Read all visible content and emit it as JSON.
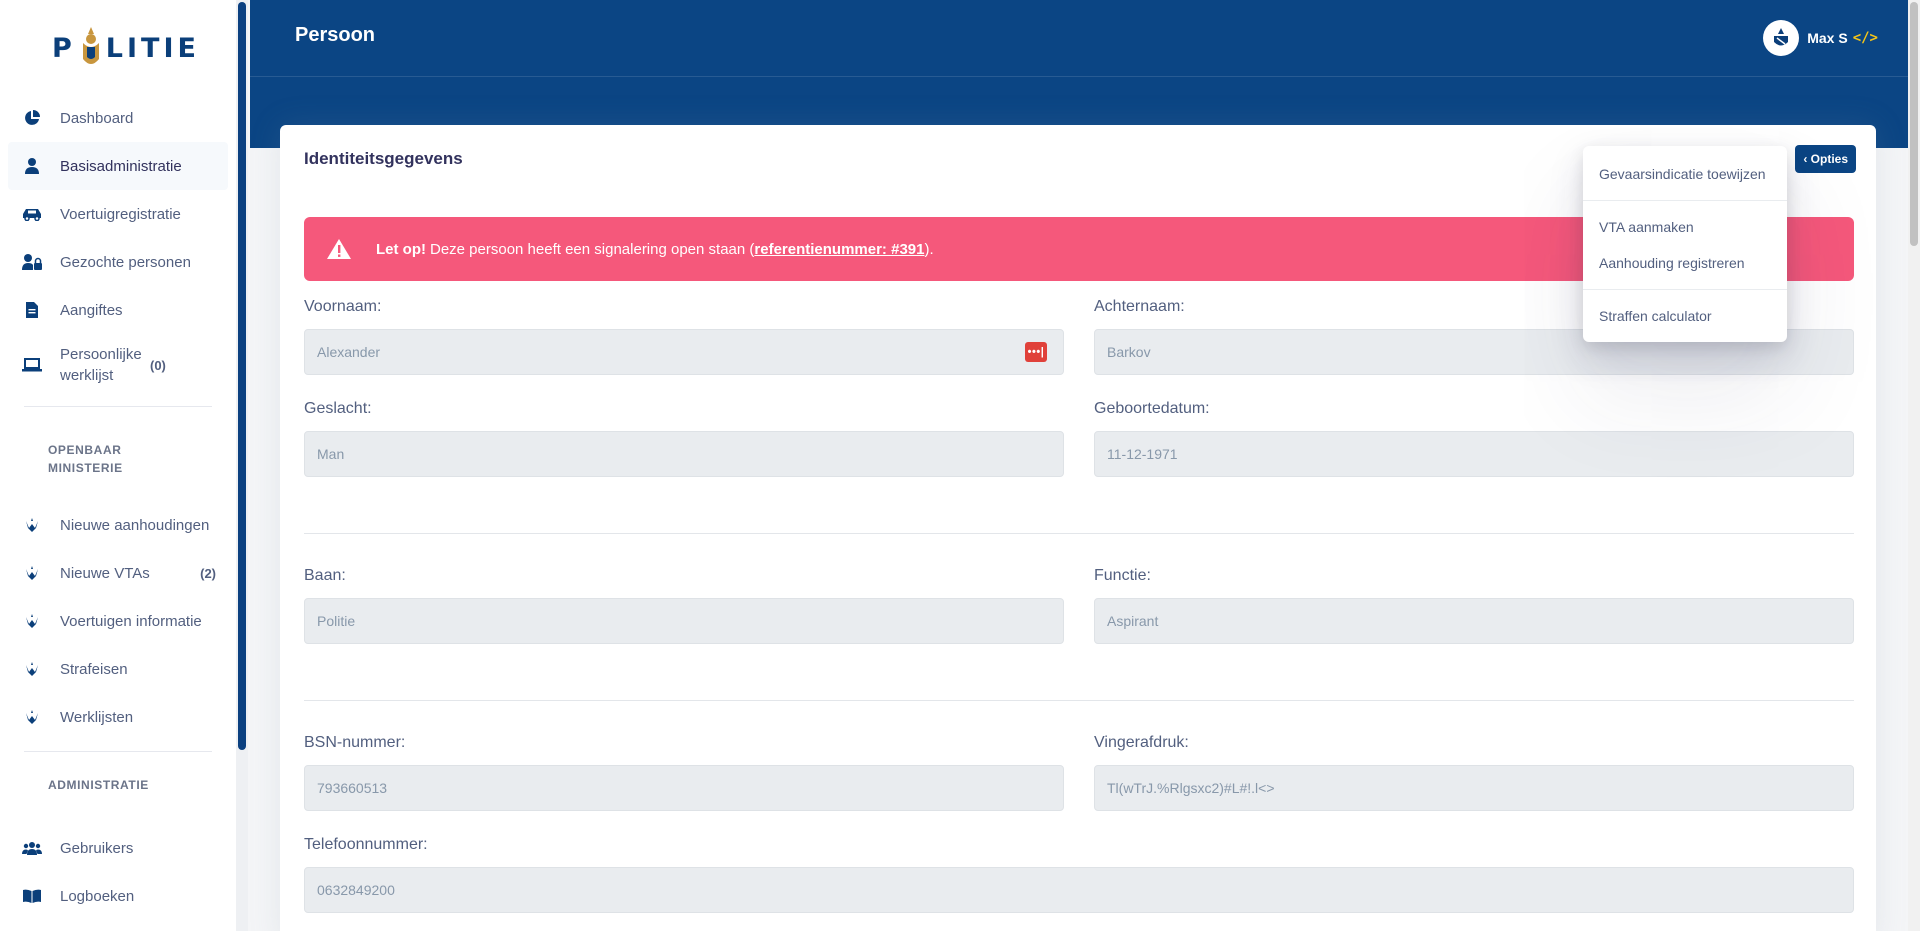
{
  "brand": {
    "logo_text_left": "P",
    "logo_text_right": "LITIE"
  },
  "sidebar": {
    "items": [
      {
        "label": "Dashboard",
        "icon": "pie-chart-icon"
      },
      {
        "label": "Basisadministratie",
        "icon": "user-icon",
        "active": true
      },
      {
        "label": "Voertuigregistratie",
        "icon": "car-icon"
      },
      {
        "label": "Gezochte personen",
        "icon": "user-lock-icon"
      },
      {
        "label": "Aangiftes",
        "icon": "file-icon"
      },
      {
        "label": "Persoonlijke werklijst",
        "icon": "laptop-icon",
        "count": "(0)"
      }
    ],
    "section_om": "OPENBAAR MINISTERIE",
    "om_items": [
      {
        "label": "Nieuwe aanhoudingen",
        "icon": "om-emblem-icon"
      },
      {
        "label": "Nieuwe VTAs",
        "icon": "om-emblem-icon",
        "count": "(2)"
      },
      {
        "label": "Voertuigen informatie",
        "icon": "om-emblem-icon"
      },
      {
        "label": "Strafeisen",
        "icon": "om-emblem-icon"
      },
      {
        "label": "Werklijsten",
        "icon": "om-emblem-icon"
      }
    ],
    "section_admin": "ADMINISTRATIE",
    "admin_items": [
      {
        "label": "Gebruikers",
        "icon": "users-icon"
      },
      {
        "label": "Logboeken",
        "icon": "book-icon"
      }
    ]
  },
  "header": {
    "title": "Persoon",
    "user_name": "Max S",
    "user_code_glyph": "</>"
  },
  "card": {
    "title": "Identiteitsgegevens",
    "options_label": "‹ Opties",
    "alert": {
      "strong": "Let op!",
      "text_before": "Deze persoon heeft een signalering open staan (",
      "link": "referentienummer: #391",
      "text_after": ")."
    },
    "fields": {
      "voornaam": {
        "label": "Voornaam:",
        "value": "Alexander",
        "badge": "•••|"
      },
      "achternaam": {
        "label": "Achternaam:",
        "value": "Barkov"
      },
      "geslacht": {
        "label": "Geslacht:",
        "value": "Man"
      },
      "geboortedatum": {
        "label": "Geboortedatum:",
        "value": "11-12-1971"
      },
      "baan": {
        "label": "Baan:",
        "value": "Politie"
      },
      "functie": {
        "label": "Functie:",
        "value": "Aspirant"
      },
      "bsn": {
        "label": "BSN-nummer:",
        "value": "793660513"
      },
      "vingerafdruk": {
        "label": "Vingerafdruk:",
        "value": "Tl(wTrJ.%Rlgsxc2)#L#!.l<>"
      },
      "telefoon": {
        "label": "Telefoonnummer:",
        "value": "0632849200"
      }
    }
  },
  "dropdown": {
    "items": [
      "Gevaarsindicatie toewijzen",
      "VTA aanmaken",
      "Aanhouding registreren",
      "Straffen calculator"
    ]
  },
  "colors": {
    "brand_blue": "#0b4584",
    "alert_pink": "#f5587b",
    "logo_gold": "#c8963e"
  }
}
